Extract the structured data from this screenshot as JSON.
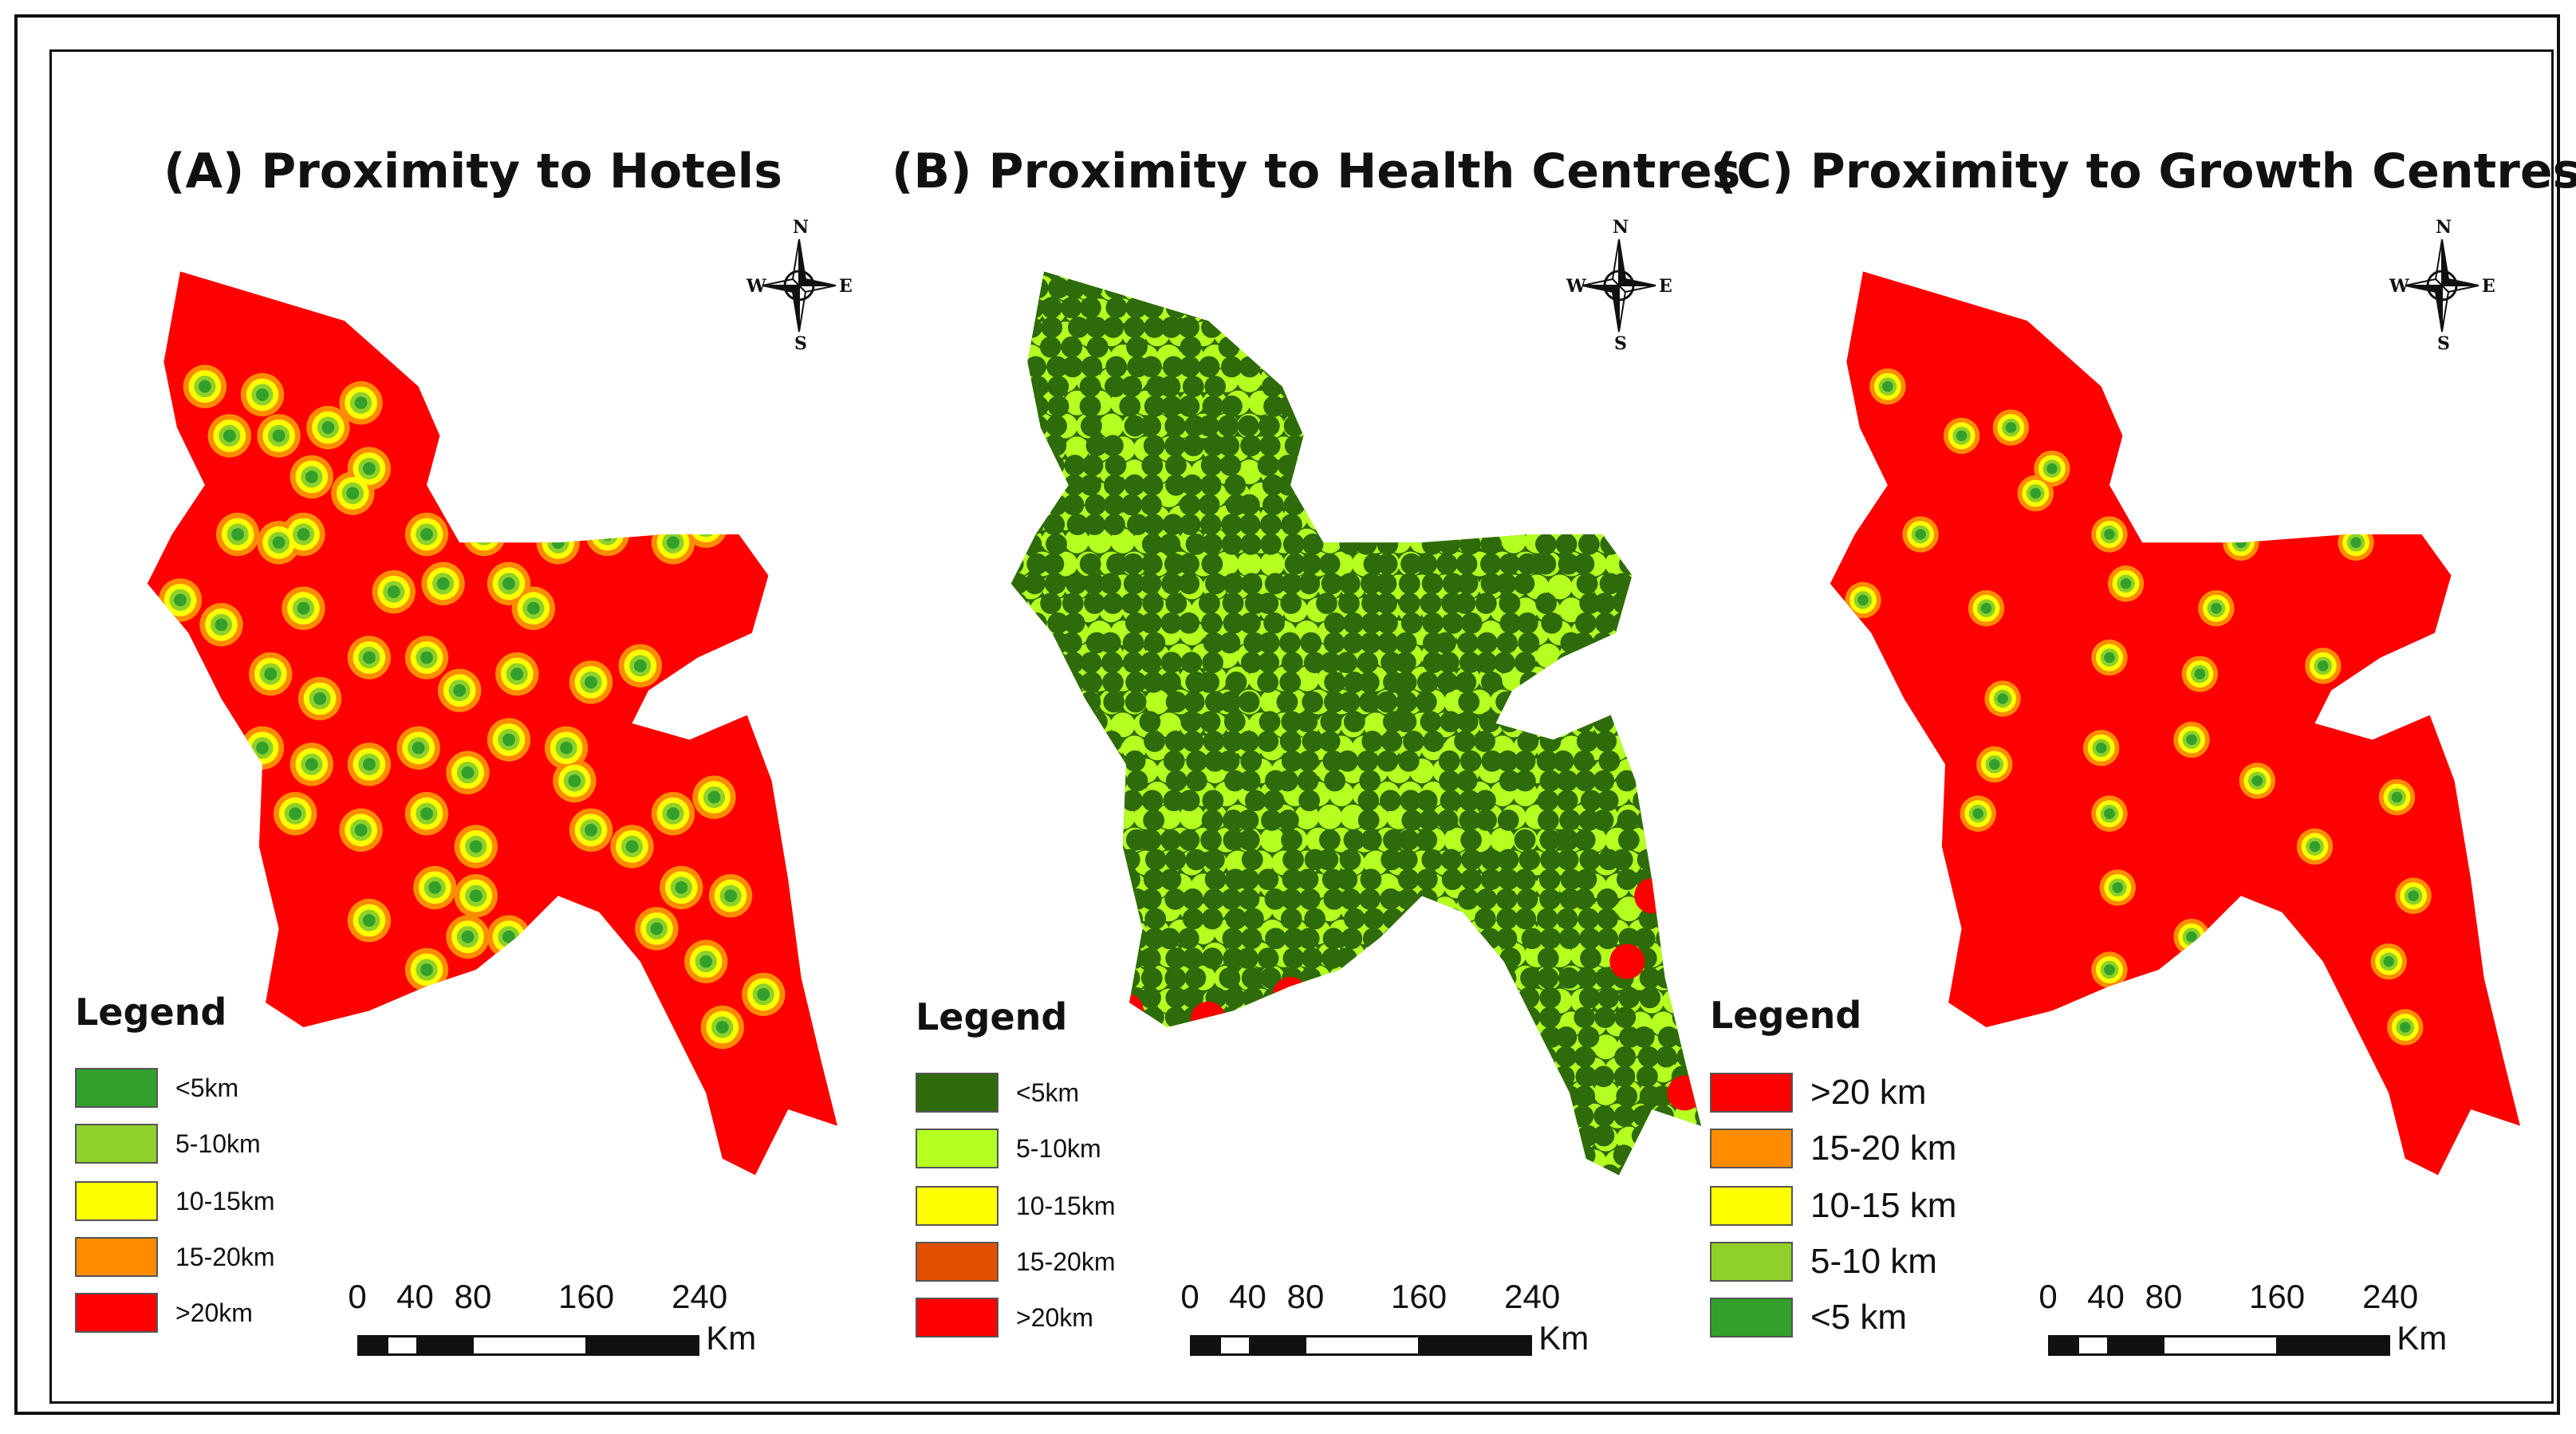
{
  "panels": [
    {
      "id": "A",
      "title": "(A) Proximity to Hotels",
      "base_color": "#ff0000",
      "legend_title": "Legend",
      "legend": [
        {
          "label": "<5km",
          "color": "#33a02c"
        },
        {
          "label": "5-10km",
          "color": "#8fd12a"
        },
        {
          "label": "10-15km",
          "color": "#ffff00"
        },
        {
          "label": "15-20km",
          "color": "#ff8c00"
        },
        {
          "label": ">20km",
          "color": "#ff0000"
        }
      ]
    },
    {
      "id": "B",
      "title": "(B) Proximity to Health Centres",
      "base_color": "#2e6b0a",
      "legend_title": "Legend",
      "legend": [
        {
          "label": "<5km",
          "color": "#2e6b0a"
        },
        {
          "label": "5-10km",
          "color": "#b5ff21"
        },
        {
          "label": "10-15km",
          "color": "#ffff00"
        },
        {
          "label": "15-20km",
          "color": "#e05000"
        },
        {
          "label": ">20km",
          "color": "#ff0000"
        }
      ]
    },
    {
      "id": "C",
      "title": "(C) Proximity to Growth Centres",
      "base_color": "#ff0000",
      "legend_title": "Legend",
      "legend": [
        {
          "label": ">20 km",
          "color": "#ff0000"
        },
        {
          "label": "15-20 km",
          "color": "#ff8c00"
        },
        {
          "label": "10-15 km",
          "color": "#ffff00"
        },
        {
          "label": "5-10 km",
          "color": "#8fd12a"
        },
        {
          "label": "<5 km",
          "color": "#33a02c"
        }
      ]
    }
  ],
  "compass": {
    "n": "N",
    "s": "S",
    "e": "E",
    "w": "W"
  },
  "scale_bar": {
    "ticks": [
      "0",
      "40",
      "80",
      "160",
      "240"
    ],
    "unit": "Km"
  }
}
